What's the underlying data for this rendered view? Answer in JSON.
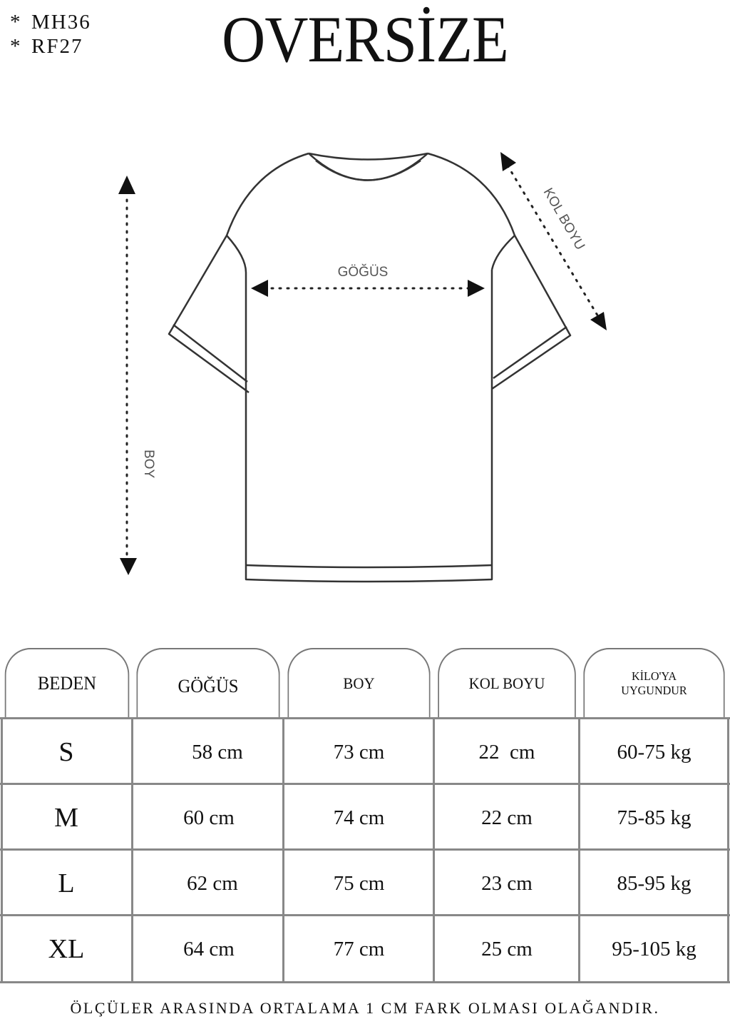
{
  "codes": [
    "MH36",
    "RF27"
  ],
  "title": "OVERSİZE",
  "diagram": {
    "chest_label": "GÖĞÜS",
    "sleeve_label": "KOL BOYU",
    "length_label": "BOY"
  },
  "table": {
    "headers": [
      "BEDEN",
      "GÖĞÜS",
      "BOY",
      "KOL BOYU",
      "KİLO'YA UYGUNDUR"
    ],
    "header_weight_line1": "KİLO'YA",
    "header_weight_line2": "UYGUNDUR",
    "rows": [
      {
        "size": "S",
        "chest": "58 cm",
        "length": "73 cm",
        "sleeve": "22  cm",
        "weight": "60-75 kg"
      },
      {
        "size": "M",
        "chest": "60 cm",
        "length": "74 cm",
        "sleeve": "22 cm",
        "weight": "75-85 kg"
      },
      {
        "size": "L",
        "chest": "62 cm",
        "length": "75 cm",
        "sleeve": "23 cm",
        "weight": "85-95 kg"
      },
      {
        "size": "XL",
        "chest": "64 cm",
        "length": "77 cm",
        "sleeve": "25 cm",
        "weight": "95-105 kg"
      }
    ]
  },
  "footer": "ÖLÇÜLER ARASINDA ORTALAMA 1 CM FARK OLMASI OLAĞANDIR."
}
